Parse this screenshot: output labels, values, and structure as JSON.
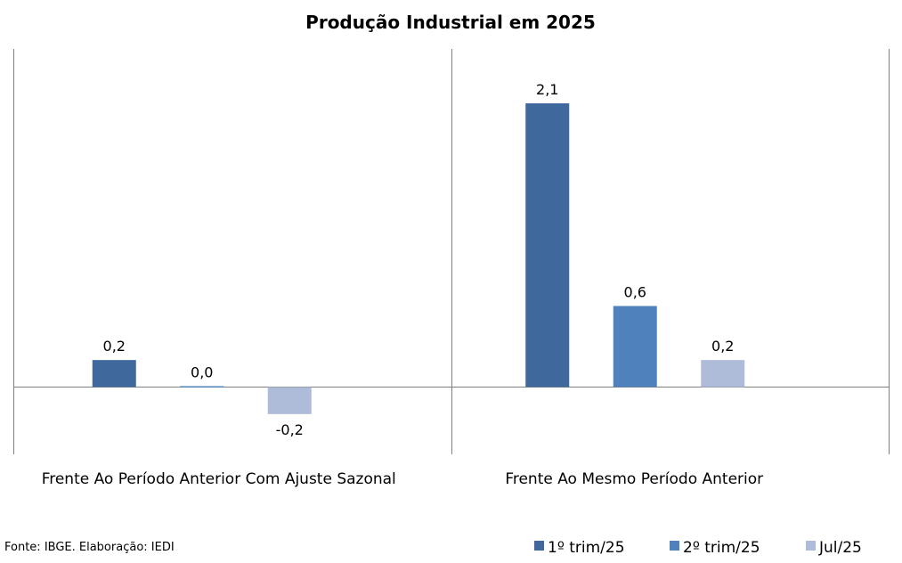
{
  "chart_data": {
    "type": "bar",
    "title": "Produção Industrial em 2025",
    "categories": [
      "Frente Ao Período Anterior Com Ajuste Sazonal",
      "Frente Ao Mesmo Período Anterior"
    ],
    "series": [
      {
        "name": "1º trim/25",
        "color": "#3F689C",
        "values": [
          0.2,
          2.1
        ],
        "labels": [
          "0,2",
          "2,1"
        ]
      },
      {
        "name": "2º trim/25",
        "color": "#4F81BD",
        "values": [
          0.0,
          0.6
        ],
        "labels": [
          "0,0",
          "0,6"
        ]
      },
      {
        "name": "Jul/25",
        "color": "#AEBCDA",
        "values": [
          -0.2,
          0.2
        ],
        "labels": [
          "-0,2",
          "0,2"
        ]
      }
    ],
    "ylim": [
      -0.5,
      2.5
    ],
    "grid": false,
    "legend_position": "bottom-right",
    "xlabel": "",
    "ylabel": ""
  },
  "source": "Fonte: IBGE. Elaboração: IEDI"
}
